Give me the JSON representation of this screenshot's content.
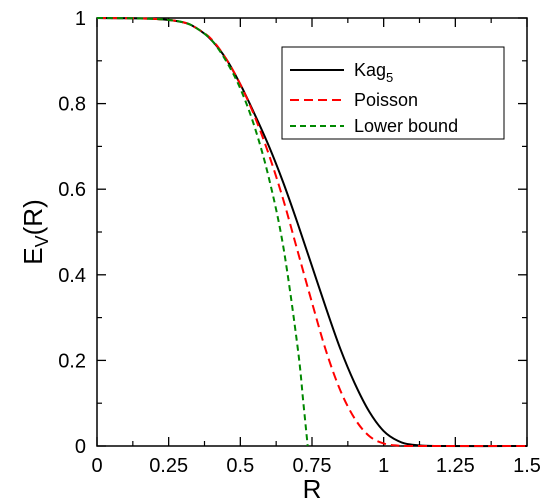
{
  "chart_data": {
    "type": "line",
    "xlabel": "R",
    "ylabel": {
      "main": "E",
      "sub": "V",
      "rest": "(R)"
    },
    "xlim": [
      0,
      1.5
    ],
    "ylim": [
      0,
      1
    ],
    "x_ticks": [
      "0",
      "0.25",
      "0.5",
      "0.75",
      "1",
      "1.25",
      "1.5"
    ],
    "y_ticks": [
      "0",
      "0.2",
      "0.4",
      "0.6",
      "0.8",
      "1"
    ],
    "legend_position": "top-right",
    "series": [
      {
        "name": "Kag",
        "name_sub": "5",
        "color": "#000000",
        "dash": "solid",
        "points": [
          [
            0,
            1
          ],
          [
            0.2,
            0.998
          ],
          [
            0.3,
            0.99
          ],
          [
            0.35,
            0.975
          ],
          [
            0.4,
            0.948
          ],
          [
            0.45,
            0.905
          ],
          [
            0.5,
            0.845
          ],
          [
            0.55,
            0.775
          ],
          [
            0.6,
            0.7
          ],
          [
            0.65,
            0.615
          ],
          [
            0.7,
            0.52
          ],
          [
            0.75,
            0.42
          ],
          [
            0.8,
            0.32
          ],
          [
            0.85,
            0.225
          ],
          [
            0.9,
            0.145
          ],
          [
            0.95,
            0.08
          ],
          [
            1.0,
            0.035
          ],
          [
            1.05,
            0.012
          ],
          [
            1.1,
            0.003
          ],
          [
            1.2,
            0
          ],
          [
            1.5,
            0
          ]
        ]
      },
      {
        "name": "Poisson",
        "color": "#ff0000",
        "dash": "dashed",
        "points": [
          [
            0,
            1
          ],
          [
            0.2,
            0.998
          ],
          [
            0.3,
            0.99
          ],
          [
            0.35,
            0.975
          ],
          [
            0.4,
            0.95
          ],
          [
            0.45,
            0.905
          ],
          [
            0.5,
            0.845
          ],
          [
            0.55,
            0.77
          ],
          [
            0.6,
            0.68
          ],
          [
            0.65,
            0.575
          ],
          [
            0.7,
            0.455
          ],
          [
            0.75,
            0.335
          ],
          [
            0.8,
            0.22
          ],
          [
            0.85,
            0.128
          ],
          [
            0.9,
            0.063
          ],
          [
            0.95,
            0.023
          ],
          [
            1.0,
            0.006
          ],
          [
            1.05,
            0.001
          ],
          [
            1.1,
            0
          ],
          [
            1.5,
            0
          ]
        ]
      },
      {
        "name": "Lower bound",
        "color": "#008800",
        "dash": "dashed",
        "points": [
          [
            0,
            1
          ],
          [
            0.2,
            0.998
          ],
          [
            0.3,
            0.99
          ],
          [
            0.35,
            0.975
          ],
          [
            0.4,
            0.948
          ],
          [
            0.45,
            0.9
          ],
          [
            0.5,
            0.835
          ],
          [
            0.55,
            0.745
          ],
          [
            0.6,
            0.625
          ],
          [
            0.65,
            0.465
          ],
          [
            0.7,
            0.23
          ],
          [
            0.72,
            0.1
          ],
          [
            0.735,
            0
          ]
        ]
      }
    ]
  }
}
